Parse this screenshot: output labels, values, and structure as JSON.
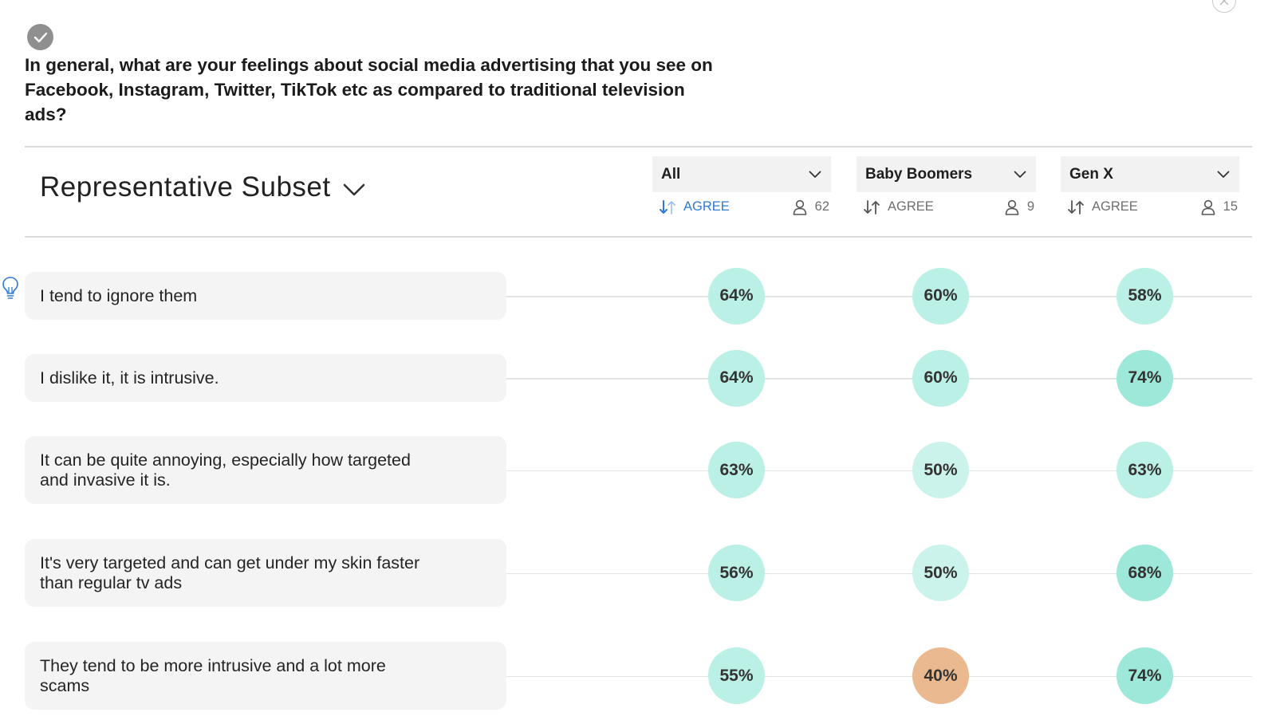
{
  "question": {
    "line1": "In general, what are your feelings about social media advertising that you see on",
    "line2": "Facebook, Instagram, Twitter, TikTok etc as compared to traditional television",
    "line3": "ads?"
  },
  "subset": {
    "label": "Representative Subset"
  },
  "segments": [
    {
      "name": "All",
      "sort_label": "AGREE",
      "count": "62"
    },
    {
      "name": "Baby Boomers",
      "sort_label": "AGREE",
      "count": "9"
    },
    {
      "name": "Gen X",
      "sort_label": "AGREE",
      "count": "15"
    }
  ],
  "rows": [
    {
      "line1": "I tend to ignore them",
      "line2": "",
      "values": [
        "64%",
        "60%",
        "58%"
      ]
    },
    {
      "line1": "I dislike it, it is intrusive.",
      "line2": "",
      "values": [
        "64%",
        "60%",
        "74%"
      ]
    },
    {
      "line1": "It can be quite annoying, especially how targeted",
      "line2": "and invasive it is.",
      "values": [
        "63%",
        "50%",
        "63%"
      ]
    },
    {
      "line1": "It's very targeted and can get under my skin faster",
      "line2": "than regular tv ads",
      "values": [
        "56%",
        "50%",
        "68%"
      ]
    },
    {
      "line1": "They tend to be more intrusive and a lot more",
      "line2": "scams",
      "values": [
        "55%",
        "40%",
        "74%"
      ]
    }
  ],
  "colors": {
    "bubble_light": "#cbf3ec",
    "bubble_mid": "#bbf0e6",
    "bubble_strong": "#9de8d9",
    "bubble_low": "#ebb98f",
    "accent_blue": "#2f7ad6"
  }
}
